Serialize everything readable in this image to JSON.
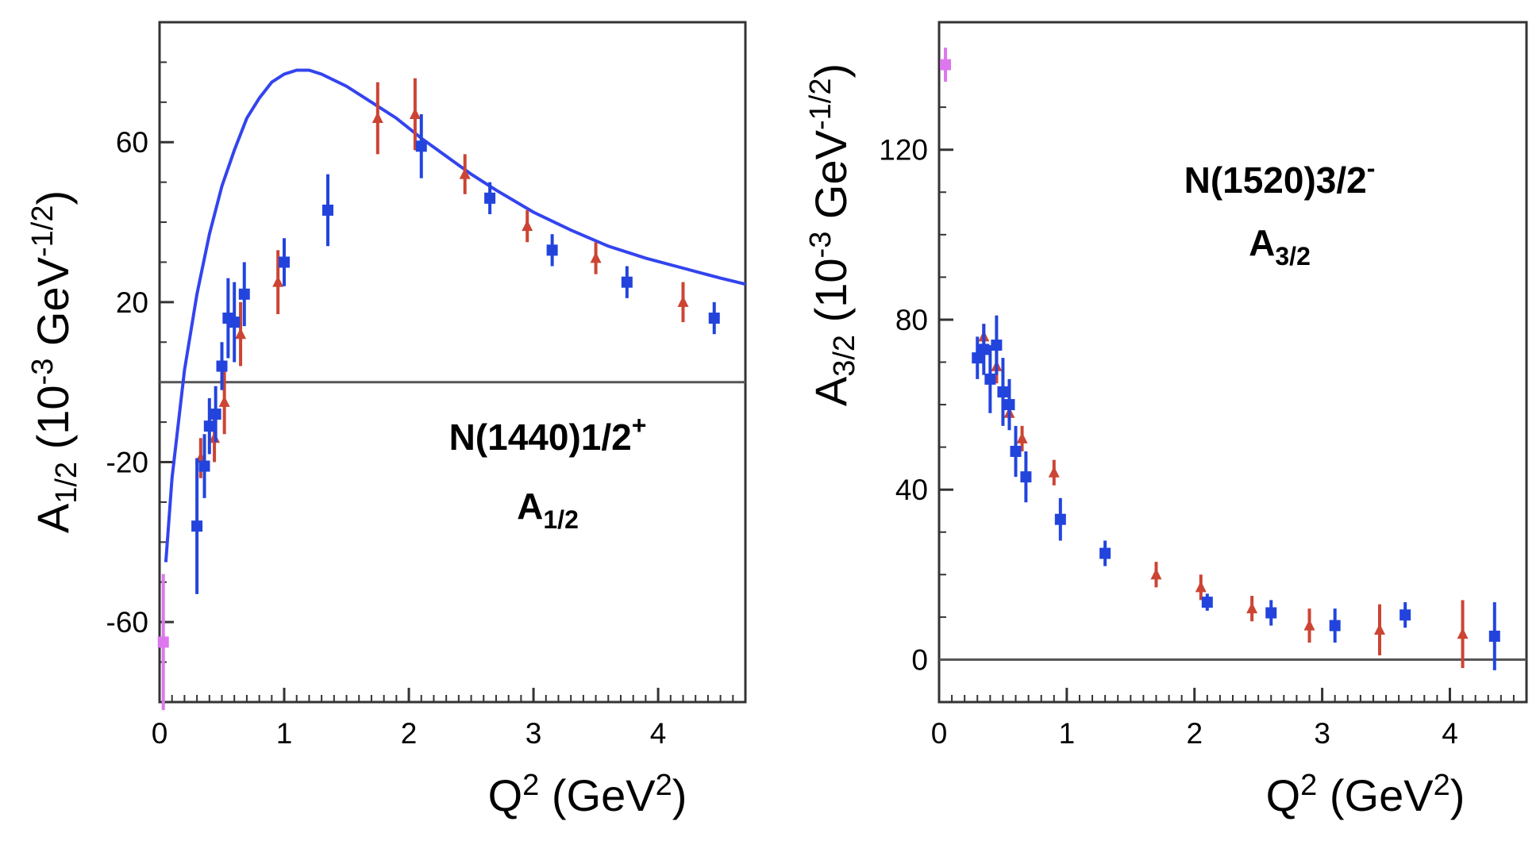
{
  "chart_data": [
    {
      "type": "scatter",
      "panel": "left",
      "title_line1": "N(1440)1/2",
      "title_sup": "+",
      "title_line2_main": "A",
      "title_line2_sub": "1/2",
      "xlabel_main": "Q",
      "xlabel_sup": "2",
      "xlabel_mid": " (GeV",
      "xlabel_sup2": "2",
      "xlabel_end": ")",
      "ylabel_main": "A",
      "ylabel_sub": "1/2",
      "ylabel_mid": " (10",
      "ylabel_sup": "-3",
      "ylabel_mid2": " GeV",
      "ylabel_sup2": "-1/2",
      "ylabel_end": ")",
      "xlim": [
        0,
        4.7
      ],
      "ylim": [
        -80,
        90
      ],
      "xticks": [
        0,
        1,
        2,
        3,
        4
      ],
      "xtick_labels": [
        "0",
        "1",
        "2",
        "3",
        "4"
      ],
      "yticks": [
        -60,
        -20,
        20,
        60
      ],
      "ytick_labels": [
        "-60",
        "-20",
        "20",
        "60"
      ],
      "zero_line": true,
      "series": [
        {
          "name": "photon point",
          "color": "#dd77ee",
          "marker": "square",
          "points": [
            {
              "x": 0.03,
              "y": -65,
              "err": 17
            }
          ]
        },
        {
          "name": "red data",
          "color": "#cc4433",
          "marker": "triangle",
          "points": [
            {
              "x": 0.33,
              "y": -19,
              "err": 5
            },
            {
              "x": 0.44,
              "y": -14,
              "err": 6
            },
            {
              "x": 0.52,
              "y": -5,
              "err": 8
            },
            {
              "x": 0.65,
              "y": 12,
              "err": 8
            },
            {
              "x": 0.95,
              "y": 25,
              "err": 8
            },
            {
              "x": 1.75,
              "y": 66,
              "err": 9
            },
            {
              "x": 2.05,
              "y": 67,
              "err": 9
            },
            {
              "x": 2.45,
              "y": 52,
              "err": 5
            },
            {
              "x": 2.95,
              "y": 39,
              "err": 4
            },
            {
              "x": 3.5,
              "y": 31,
              "err": 4
            },
            {
              "x": 4.2,
              "y": 20,
              "err": 5
            }
          ]
        },
        {
          "name": "blue data",
          "color": "#2244dd",
          "marker": "square",
          "points": [
            {
              "x": 0.3,
              "y": -36,
              "err": 17
            },
            {
              "x": 0.36,
              "y": -21,
              "err": 8
            },
            {
              "x": 0.4,
              "y": -11,
              "err": 7
            },
            {
              "x": 0.45,
              "y": -8,
              "err": 7
            },
            {
              "x": 0.5,
              "y": 4,
              "err": 6
            },
            {
              "x": 0.55,
              "y": 16,
              "err": 10
            },
            {
              "x": 0.6,
              "y": 15,
              "err": 10
            },
            {
              "x": 0.68,
              "y": 22,
              "err": 8
            },
            {
              "x": 1.0,
              "y": 30,
              "err": 6
            },
            {
              "x": 1.35,
              "y": 43,
              "err": 9
            },
            {
              "x": 2.1,
              "y": 59,
              "err": 8
            },
            {
              "x": 2.65,
              "y": 46,
              "err": 4
            },
            {
              "x": 3.15,
              "y": 33,
              "err": 4
            },
            {
              "x": 3.75,
              "y": 25,
              "err": 4
            },
            {
              "x": 4.45,
              "y": 16,
              "err": 4
            }
          ]
        }
      ],
      "curve": {
        "name": "model",
        "color": "#3344ee",
        "points": [
          {
            "x": 0.05,
            "y": -45
          },
          {
            "x": 0.1,
            "y": -24
          },
          {
            "x": 0.2,
            "y": 3
          },
          {
            "x": 0.3,
            "y": 22
          },
          {
            "x": 0.4,
            "y": 37
          },
          {
            "x": 0.5,
            "y": 49
          },
          {
            "x": 0.6,
            "y": 58
          },
          {
            "x": 0.7,
            "y": 66
          },
          {
            "x": 0.8,
            "y": 71
          },
          {
            "x": 0.9,
            "y": 75
          },
          {
            "x": 1.0,
            "y": 77
          },
          {
            "x": 1.1,
            "y": 78
          },
          {
            "x": 1.2,
            "y": 78
          },
          {
            "x": 1.3,
            "y": 77
          },
          {
            "x": 1.5,
            "y": 74
          },
          {
            "x": 1.7,
            "y": 70
          },
          {
            "x": 1.9,
            "y": 66
          },
          {
            "x": 2.1,
            "y": 61
          },
          {
            "x": 2.3,
            "y": 56.5
          },
          {
            "x": 2.5,
            "y": 52
          },
          {
            "x": 2.7,
            "y": 48
          },
          {
            "x": 3.0,
            "y": 42.5
          },
          {
            "x": 3.3,
            "y": 38
          },
          {
            "x": 3.6,
            "y": 34
          },
          {
            "x": 3.9,
            "y": 31
          },
          {
            "x": 4.2,
            "y": 28.5
          },
          {
            "x": 4.5,
            "y": 26
          },
          {
            "x": 4.7,
            "y": 24.5
          }
        ]
      }
    },
    {
      "type": "scatter",
      "panel": "right",
      "title_line1": "N(1520)3/2",
      "title_sup": "-",
      "title_line2_main": "A",
      "title_line2_sub": "3/2",
      "xlabel_main": "Q",
      "xlabel_sup": "2",
      "xlabel_mid": " (GeV",
      "xlabel_sup2": "2",
      "xlabel_end": ")",
      "ylabel_main": "A",
      "ylabel_sub": "3/2",
      "ylabel_mid": " (10",
      "ylabel_sup": "-3",
      "ylabel_mid2": " GeV",
      "ylabel_sup2": "-1/2",
      "ylabel_end": ")",
      "xlim": [
        0,
        4.6
      ],
      "ylim": [
        -10,
        150
      ],
      "xticks": [
        0,
        1,
        2,
        3,
        4
      ],
      "xtick_labels": [
        "0",
        "1",
        "2",
        "3",
        "4"
      ],
      "yticks": [
        0,
        40,
        80,
        120
      ],
      "ytick_labels": [
        "0",
        "40",
        "80",
        "120"
      ],
      "zero_line": true,
      "series": [
        {
          "name": "photon point",
          "color": "#dd77ee",
          "marker": "square",
          "points": [
            {
              "x": 0.05,
              "y": 140,
              "err": 4
            }
          ]
        },
        {
          "name": "red data",
          "color": "#cc4433",
          "marker": "triangle",
          "points": [
            {
              "x": 0.35,
              "y": 76,
              "err": 3
            },
            {
              "x": 0.45,
              "y": 69,
              "err": 4
            },
            {
              "x": 0.55,
              "y": 58,
              "err": 3
            },
            {
              "x": 0.65,
              "y": 52,
              "err": 3
            },
            {
              "x": 0.9,
              "y": 44,
              "err": 3
            },
            {
              "x": 1.7,
              "y": 20,
              "err": 3
            },
            {
              "x": 2.05,
              "y": 17,
              "err": 3
            },
            {
              "x": 2.45,
              "y": 12,
              "err": 3
            },
            {
              "x": 2.9,
              "y": 8,
              "err": 4
            },
            {
              "x": 3.45,
              "y": 7,
              "err": 6
            },
            {
              "x": 4.1,
              "y": 6,
              "err": 8
            }
          ]
        },
        {
          "name": "blue data",
          "color": "#2244dd",
          "marker": "square",
          "points": [
            {
              "x": 0.3,
              "y": 71,
              "err": 5
            },
            {
              "x": 0.35,
              "y": 73,
              "err": 6
            },
            {
              "x": 0.4,
              "y": 66,
              "err": 8
            },
            {
              "x": 0.45,
              "y": 74,
              "err": 7
            },
            {
              "x": 0.5,
              "y": 63,
              "err": 8
            },
            {
              "x": 0.55,
              "y": 60,
              "err": 6
            },
            {
              "x": 0.6,
              "y": 49,
              "err": 6
            },
            {
              "x": 0.68,
              "y": 43,
              "err": 6
            },
            {
              "x": 0.95,
              "y": 33,
              "err": 5
            },
            {
              "x": 1.3,
              "y": 25,
              "err": 3
            },
            {
              "x": 2.1,
              "y": 13.5,
              "err": 2
            },
            {
              "x": 2.6,
              "y": 11,
              "err": 3
            },
            {
              "x": 3.1,
              "y": 8,
              "err": 4
            },
            {
              "x": 3.65,
              "y": 10.5,
              "err": 3
            },
            {
              "x": 4.35,
              "y": 5.5,
              "err": 8
            }
          ]
        }
      ]
    }
  ]
}
